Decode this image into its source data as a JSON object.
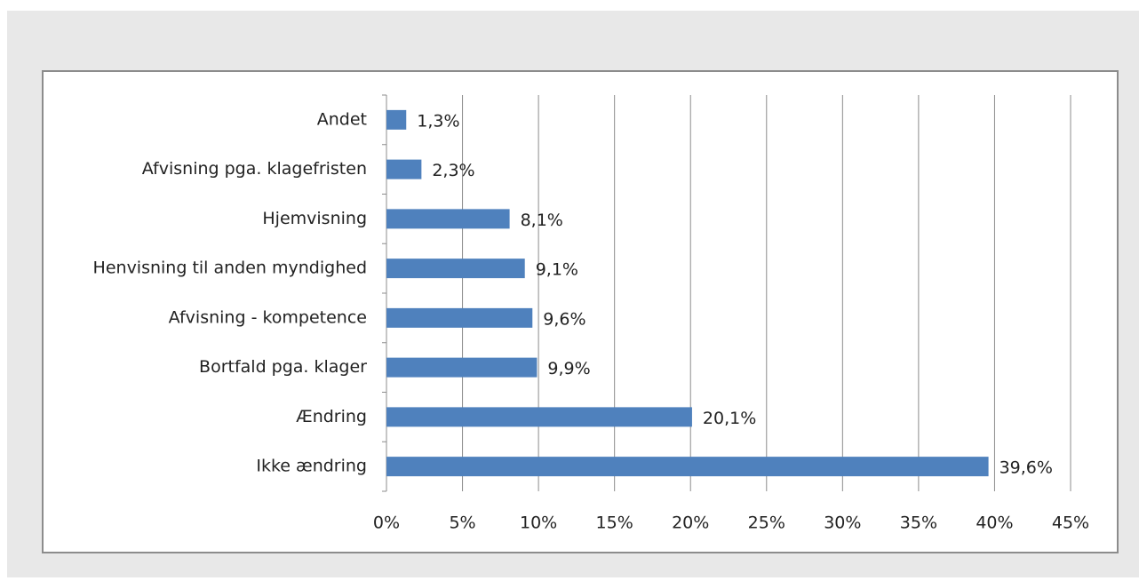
{
  "chart_data": {
    "type": "bar",
    "orientation": "horizontal",
    "categories": [
      "Andet",
      "Afvisning pga. klagefristen",
      "Hjemvisning",
      "Henvisning til anden myndighed",
      "Afvisning - kompetence",
      "Bortfald pga. klager",
      "Ændring",
      "Ikke ændring"
    ],
    "values": [
      1.3,
      2.3,
      8.1,
      9.1,
      9.6,
      9.9,
      20.1,
      39.6
    ],
    "value_labels": [
      "1,3%",
      "2,3%",
      "8,1%",
      "9,1%",
      "9,6%",
      "9,9%",
      "20,1%",
      "39,6%"
    ],
    "color": "#4f81bd",
    "xlim": [
      0,
      45
    ],
    "xticks": [
      {
        "value": 0,
        "label": "0%"
      },
      {
        "value": 5,
        "label": "5%"
      },
      {
        "value": 10,
        "label": "10%"
      },
      {
        "value": 15,
        "label": "15%"
      },
      {
        "value": 20,
        "label": "20%"
      },
      {
        "value": 25,
        "label": "25%"
      },
      {
        "value": 30,
        "label": "30%"
      },
      {
        "value": 35,
        "label": "35%"
      },
      {
        "value": 40,
        "label": "40%"
      },
      {
        "value": 45,
        "label": "45%"
      }
    ],
    "grid": true
  }
}
